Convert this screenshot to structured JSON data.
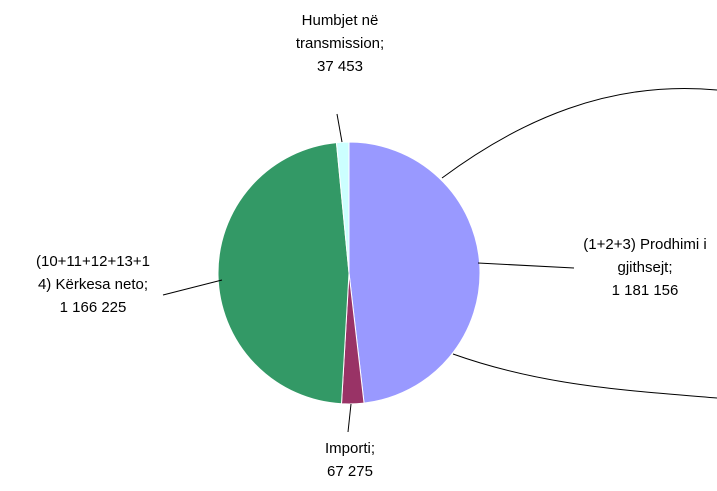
{
  "chart_data": {
    "type": "pie",
    "slices": [
      {
        "label": [
          "(1+2+3) Prodhimi i",
          "gjithsejt;"
        ],
        "value": 1181156,
        "value_text": "1 181 156",
        "color": "#9999ff"
      },
      {
        "label": [
          "Importi;"
        ],
        "value": 67275,
        "value_text": "67 275",
        "color": "#993366"
      },
      {
        "label": [
          "(10+11+12+13+1",
          "4) Kërkesa neto;"
        ],
        "value": 1166225,
        "value_text": "1 166 225",
        "color": "#339966"
      },
      {
        "label": [
          "Humbjet në",
          "transmission;"
        ],
        "value": 37453,
        "value_text": "37 453",
        "color": "#ccffff"
      }
    ],
    "legend": "none"
  }
}
